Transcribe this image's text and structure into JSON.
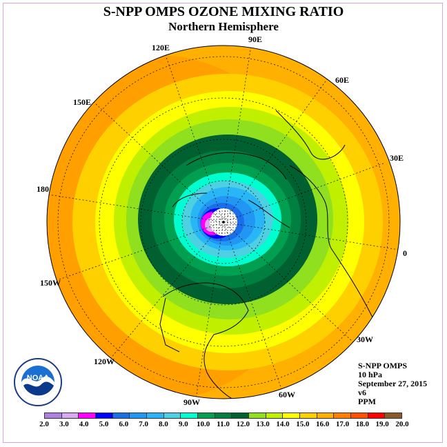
{
  "title": "S-NPP OMPS OZONE MIXING RATIO",
  "subtitle": "Northern Hemisphere",
  "info": {
    "instrument": "S-NPP OMPS",
    "level": "10 hPa",
    "date": "September 27, 2015",
    "version": "v6",
    "units": "PPM"
  },
  "longitude_labels": [
    "90E",
    "60E",
    "30E",
    "0",
    "30W",
    "60W",
    "90W",
    "120W",
    "150W",
    "180",
    "150E",
    "120E"
  ],
  "logo": {
    "icon": "noaa-logo-icon",
    "text": "NOAA"
  },
  "colorbar": {
    "ticks": [
      "2.0",
      "3.0",
      "4.0",
      "5.0",
      "6.0",
      "7.0",
      "8.0",
      "9.0",
      "10.0",
      "11.0",
      "12.0",
      "13.0",
      "14.0",
      "15.0",
      "16.0",
      "17.0",
      "18.0",
      "19.0",
      "20.0"
    ],
    "colors": [
      "#b080e0",
      "#d8a8f0",
      "#ff00ff",
      "#0000ff",
      "#1a6fe8",
      "#2196f3",
      "#29b6f6",
      "#4dd0e1",
      "#00ffd0",
      "#00a050",
      "#008040",
      "#006030",
      "#90e020",
      "#c0f000",
      "#ffff00",
      "#ffd000",
      "#ffb000",
      "#ff8000",
      "#ff5000",
      "#ff0000",
      "#8b5a2b"
    ]
  }
}
